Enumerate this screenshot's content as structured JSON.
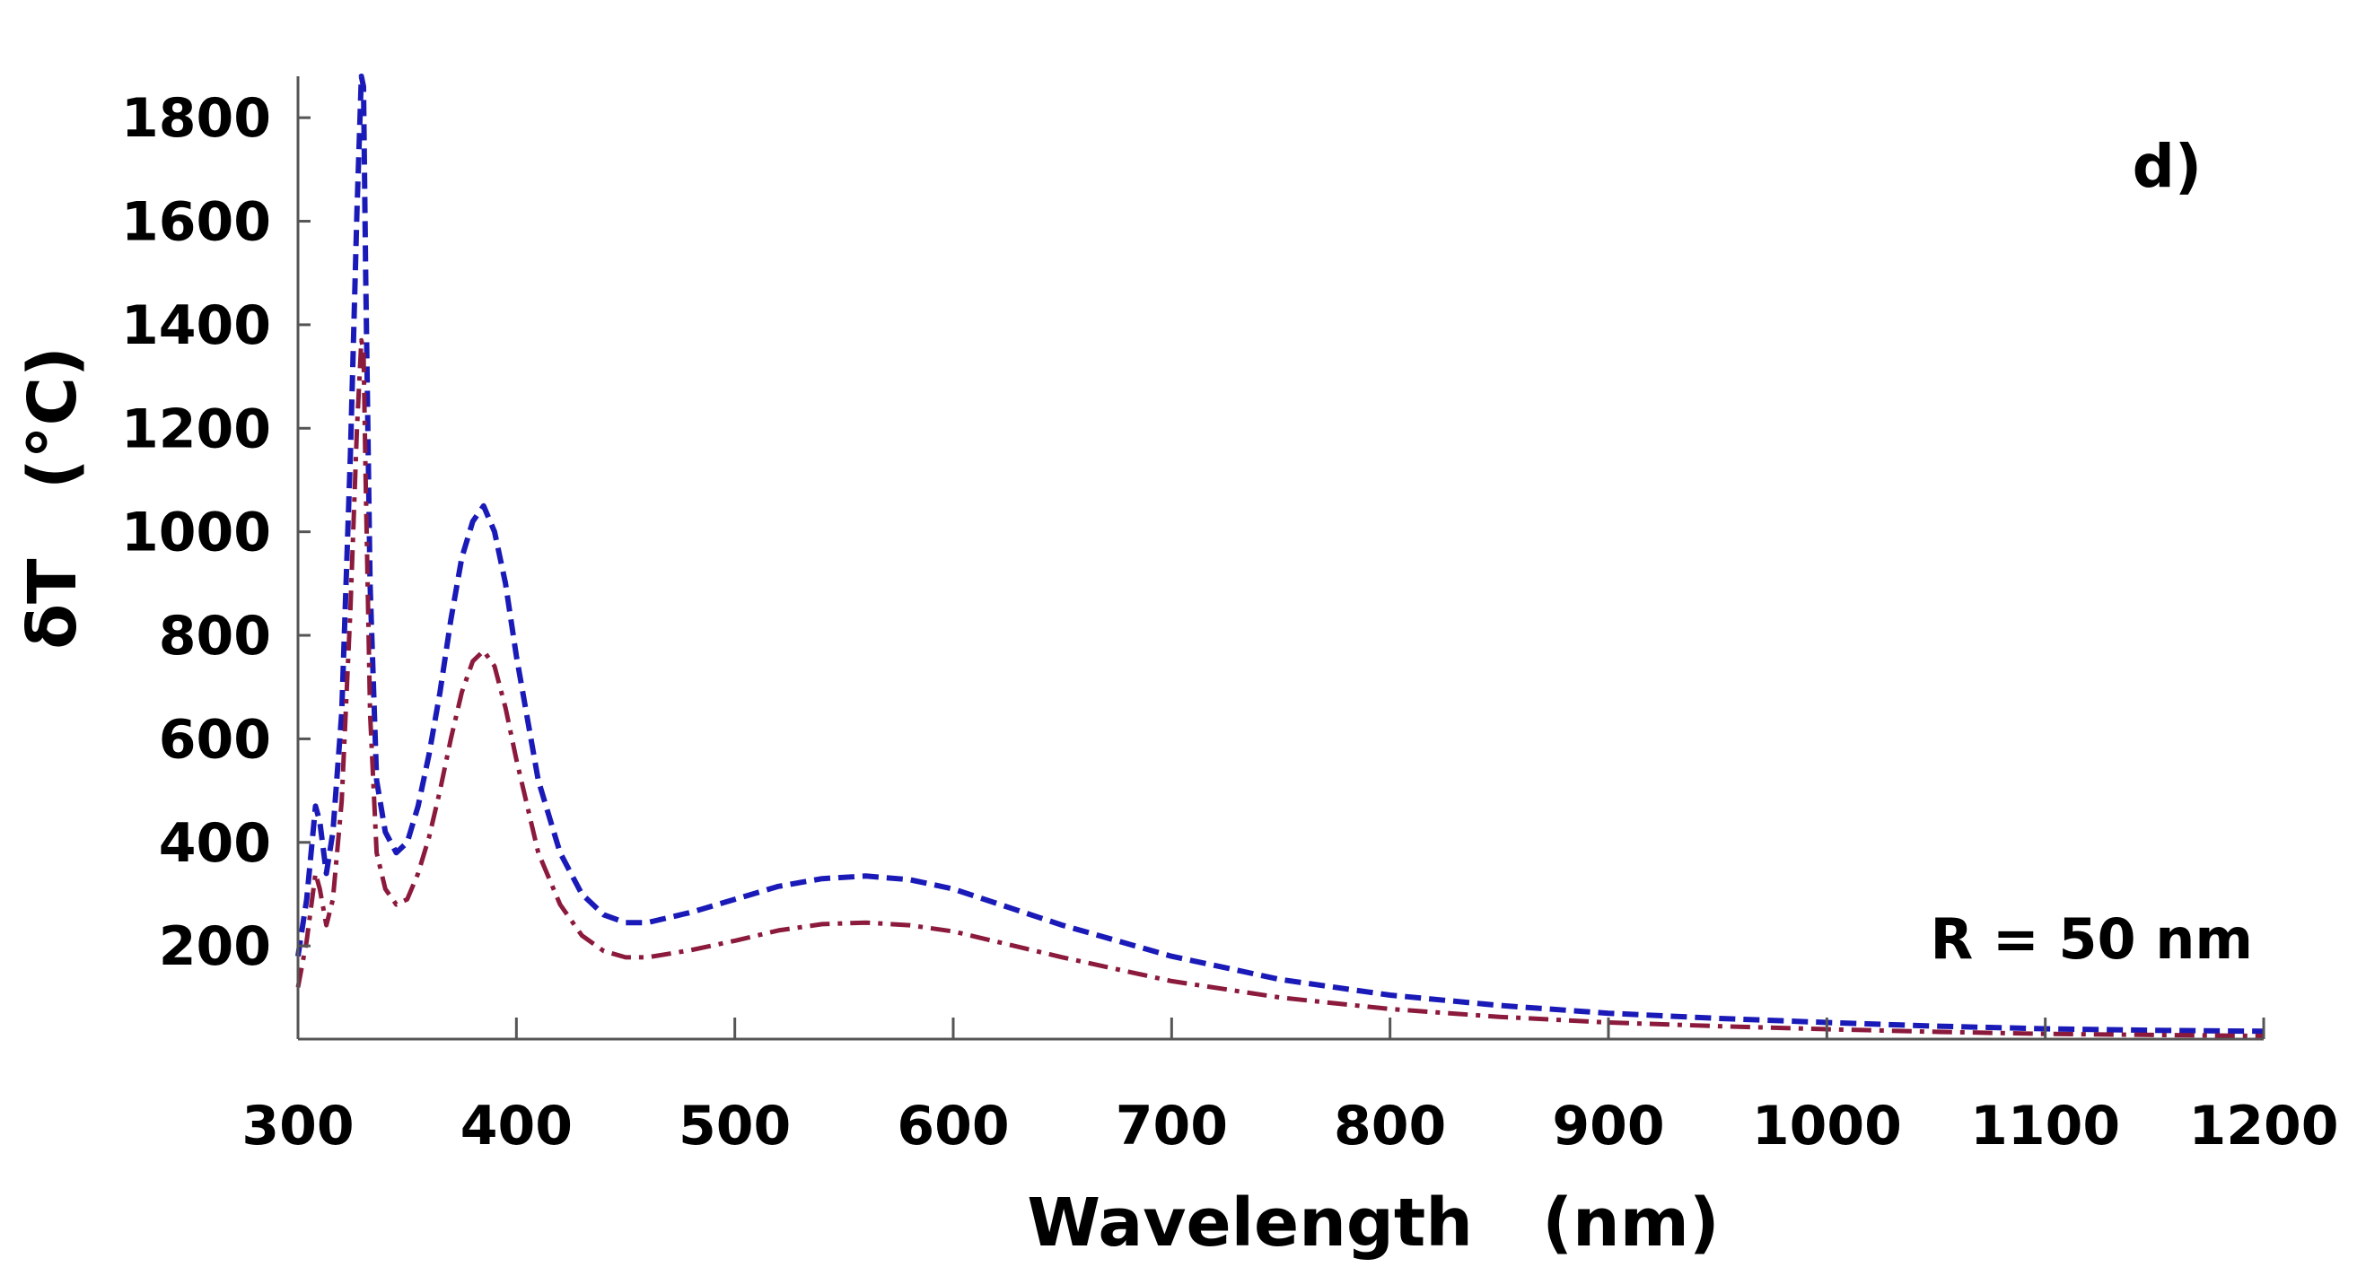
{
  "chart_data": {
    "type": "line",
    "title": "",
    "panel_label": "d)",
    "annotation": "R = 50 nm",
    "xlabel": "Wavelength   (nm)",
    "ylabel": "δT   (°C)",
    "xlim": [
      300,
      1200
    ],
    "ylim": [
      20,
      1880
    ],
    "xticks": [
      "300",
      "400",
      "500",
      "600",
      "700",
      "800",
      "900",
      "1000",
      "1100",
      "1200"
    ],
    "xtick_values": [
      300,
      400,
      500,
      600,
      700,
      800,
      900,
      1000,
      1100,
      1200
    ],
    "yticks": [
      "200",
      "400",
      "600",
      "800",
      "1000",
      "1200",
      "1400",
      "1600",
      "1800"
    ],
    "ytick_values": [
      200,
      400,
      600,
      800,
      1000,
      1200,
      1400,
      1600,
      1800
    ],
    "series": [
      {
        "name": "blue dashed",
        "color": "#1a1ab8",
        "style": "dashed",
        "x": [
          300,
          304,
          308,
          310,
          313,
          316,
          320,
          324,
          327,
          329,
          330,
          331,
          333,
          336,
          340,
          345,
          350,
          355,
          360,
          365,
          370,
          375,
          380,
          385,
          390,
          395,
          400,
          410,
          420,
          430,
          440,
          450,
          460,
          480,
          500,
          520,
          540,
          560,
          580,
          600,
          650,
          700,
          750,
          800,
          850,
          900,
          950,
          1000,
          1050,
          1100,
          1150,
          1200
        ],
        "y": [
          180,
          290,
          470,
          440,
          340,
          420,
          650,
          1150,
          1620,
          1880,
          1860,
          1500,
          900,
          520,
          420,
          380,
          400,
          470,
          570,
          690,
          830,
          950,
          1020,
          1050,
          1000,
          900,
          760,
          520,
          380,
          300,
          260,
          245,
          245,
          265,
          290,
          315,
          330,
          335,
          328,
          310,
          240,
          180,
          135,
          105,
          85,
          70,
          60,
          52,
          45,
          40,
          37,
          35
        ]
      },
      {
        "name": "dark red dash-dot",
        "color": "#8b1a3c",
        "style": "dashdot",
        "x": [
          300,
          304,
          308,
          310,
          313,
          316,
          320,
          324,
          327,
          329,
          330,
          331,
          333,
          336,
          340,
          345,
          350,
          355,
          360,
          365,
          370,
          375,
          380,
          385,
          390,
          395,
          400,
          410,
          420,
          430,
          440,
          450,
          460,
          480,
          500,
          520,
          540,
          560,
          580,
          600,
          650,
          700,
          750,
          800,
          850,
          900,
          950,
          1000,
          1050,
          1100,
          1150,
          1200
        ],
        "y": [
          120,
          210,
          340,
          310,
          240,
          290,
          480,
          850,
          1200,
          1370,
          1350,
          1100,
          650,
          380,
          310,
          280,
          290,
          340,
          410,
          500,
          600,
          690,
          750,
          770,
          740,
          660,
          560,
          380,
          280,
          220,
          190,
          178,
          178,
          192,
          210,
          230,
          242,
          245,
          240,
          228,
          178,
          132,
          100,
          78,
          63,
          52,
          45,
          39,
          34,
          30,
          28,
          26
        ]
      }
    ]
  }
}
